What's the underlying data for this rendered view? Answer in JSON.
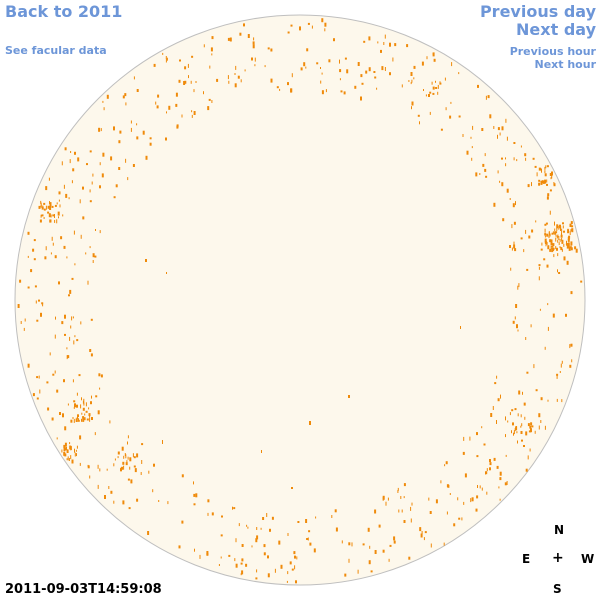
{
  "nav": {
    "back": "Back to 2011",
    "facular": "See facular data",
    "previous_day": "Previous day",
    "next_day": "Next day",
    "previous_hour": "Previous hour",
    "next_hour": "Next hour"
  },
  "timestamp": "2011-09-03T14:59:08",
  "compass": {
    "north": "N",
    "east": "E",
    "west": "W",
    "south": "S",
    "center": "+"
  },
  "colors": {
    "disk_fill": "#fdf8ec",
    "disk_outline": "#bfbfbf",
    "facula": "#ef8a0a",
    "link": "#6d96d8"
  }
}
